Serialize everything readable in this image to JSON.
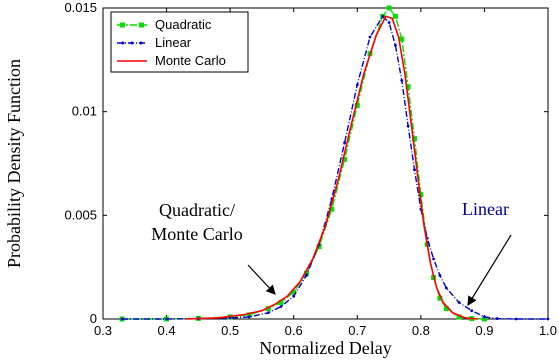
{
  "chart_data": {
    "type": "line",
    "title": "",
    "xlabel": "Normalized Delay",
    "ylabel": "Probability Density Function",
    "xlim": [
      0.3,
      1.0
    ],
    "ylim": [
      0,
      0.015
    ],
    "xticks": [
      "0.3",
      "0.4",
      "0.5",
      "0.6",
      "0.7",
      "0.8",
      "0.9",
      "1.0"
    ],
    "yticks": [
      "0",
      "0.005",
      "0.01",
      "0.015"
    ],
    "grid": false,
    "legend_position": "top-left",
    "series": [
      {
        "name": "Quadratic",
        "color": "#00e000",
        "style": "dash-dot-square-markers",
        "points": [
          [
            0.33,
            0
          ],
          [
            0.4,
            0
          ],
          [
            0.45,
            3e-05
          ],
          [
            0.5,
            0.0001
          ],
          [
            0.53,
            0.0002
          ],
          [
            0.56,
            0.0005
          ],
          [
            0.58,
            0.0008
          ],
          [
            0.6,
            0.0013
          ],
          [
            0.62,
            0.0022
          ],
          [
            0.64,
            0.0035
          ],
          [
            0.66,
            0.0053
          ],
          [
            0.68,
            0.0077
          ],
          [
            0.7,
            0.0103
          ],
          [
            0.72,
            0.0128
          ],
          [
            0.74,
            0.0146
          ],
          [
            0.75,
            0.015
          ],
          [
            0.76,
            0.0146
          ],
          [
            0.77,
            0.0135
          ],
          [
            0.78,
            0.0112
          ],
          [
            0.79,
            0.0087
          ],
          [
            0.8,
            0.006
          ],
          [
            0.81,
            0.0036
          ],
          [
            0.82,
            0.002
          ],
          [
            0.83,
            0.001
          ],
          [
            0.84,
            0.0005
          ],
          [
            0.86,
            0.0001
          ],
          [
            0.88,
            2e-05
          ],
          [
            0.9,
            0
          ]
        ]
      },
      {
        "name": "Linear",
        "color": "#0000cc",
        "style": "dash-dot-dot-markers",
        "points": [
          [
            0.33,
            0
          ],
          [
            0.4,
            0
          ],
          [
            0.45,
            2e-05
          ],
          [
            0.5,
            5e-05
          ],
          [
            0.53,
            0.0001
          ],
          [
            0.56,
            0.0003
          ],
          [
            0.58,
            0.0006
          ],
          [
            0.6,
            0.0011
          ],
          [
            0.62,
            0.0021
          ],
          [
            0.64,
            0.0036
          ],
          [
            0.66,
            0.0058
          ],
          [
            0.68,
            0.0085
          ],
          [
            0.7,
            0.0113
          ],
          [
            0.72,
            0.0136
          ],
          [
            0.74,
            0.0146
          ],
          [
            0.75,
            0.0143
          ],
          [
            0.76,
            0.0132
          ],
          [
            0.77,
            0.0115
          ],
          [
            0.78,
            0.0093
          ],
          [
            0.79,
            0.0072
          ],
          [
            0.8,
            0.0053
          ],
          [
            0.81,
            0.0039
          ],
          [
            0.82,
            0.0029
          ],
          [
            0.83,
            0.0021
          ],
          [
            0.84,
            0.0015
          ],
          [
            0.86,
            0.0008
          ],
          [
            0.88,
            0.0004
          ],
          [
            0.9,
            0.0001
          ],
          [
            0.92,
            2e-05
          ],
          [
            0.95,
            0
          ],
          [
            1.0,
            0
          ]
        ]
      },
      {
        "name": "Monte Carlo",
        "color": "#ff0000",
        "style": "solid",
        "points": [
          [
            0.43,
            0
          ],
          [
            0.48,
            5e-05
          ],
          [
            0.52,
            0.0002
          ],
          [
            0.55,
            0.0004
          ],
          [
            0.57,
            0.0007
          ],
          [
            0.59,
            0.0011
          ],
          [
            0.61,
            0.0018
          ],
          [
            0.63,
            0.0029
          ],
          [
            0.65,
            0.0045
          ],
          [
            0.67,
            0.0067
          ],
          [
            0.69,
            0.0093
          ],
          [
            0.71,
            0.0118
          ],
          [
            0.73,
            0.0137
          ],
          [
            0.745,
            0.0146
          ],
          [
            0.755,
            0.0145
          ],
          [
            0.765,
            0.0136
          ],
          [
            0.775,
            0.0118
          ],
          [
            0.785,
            0.0094
          ],
          [
            0.795,
            0.0069
          ],
          [
            0.805,
            0.0045
          ],
          [
            0.815,
            0.0027
          ],
          [
            0.825,
            0.0015
          ],
          [
            0.835,
            0.0008
          ],
          [
            0.85,
            0.0003
          ],
          [
            0.87,
            5e-05
          ],
          [
            0.89,
            0
          ]
        ]
      }
    ],
    "annotations": [
      {
        "text_lines": [
          "Quadratic/",
          "Monte Carlo"
        ],
        "color": "#000000",
        "target": [
          0.578,
          0.0008
        ]
      },
      {
        "text_lines": [
          "Linear"
        ],
        "color": "#00008b",
        "target": [
          0.878,
          0.0004
        ]
      }
    ]
  }
}
